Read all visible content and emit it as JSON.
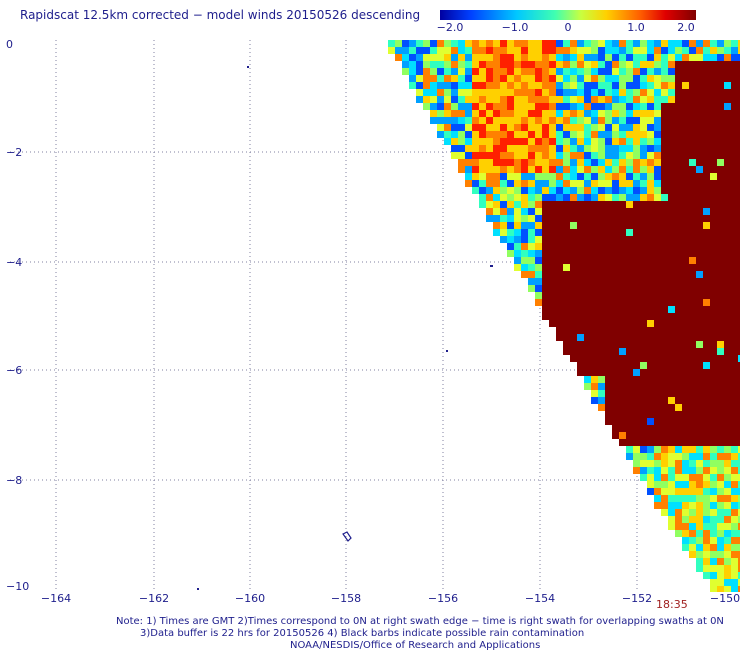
{
  "title": "Rapidscat 12.5km corrected − model winds 20150526 descending",
  "colorbar": {
    "tick_labels": [
      "−2.0",
      "−1.0",
      "0",
      "1.0",
      "2.0"
    ],
    "range": [
      -2.0,
      2.0
    ],
    "colors": [
      "#0000a0",
      "#0040ff",
      "#00c8ff",
      "#40ffb0",
      "#c8ff40",
      "#ffd000",
      "#ff6000",
      "#e00000",
      "#800000"
    ]
  },
  "axes": {
    "x_ticks": [
      "−164",
      "−162",
      "−160",
      "−158",
      "−156",
      "−154",
      "−152",
      "−150"
    ],
    "y_ticks": [
      "0",
      "−2",
      "−4",
      "−6",
      "−8",
      "−10"
    ],
    "xlim": [
      -165,
      -150
    ],
    "ylim": [
      -10,
      0
    ]
  },
  "time_label": "18:35",
  "notes": [
    "Note: 1) Times are GMT 2)Times correspond to 0N at right swath edge − time is right swath for overlapping swaths at 0N",
    "3)Data buffer is 22 hrs for 20150526 4) Black barbs indicate possible rain contamination",
    "NOAA/NESDIS/Office of Research and Applications"
  ]
}
